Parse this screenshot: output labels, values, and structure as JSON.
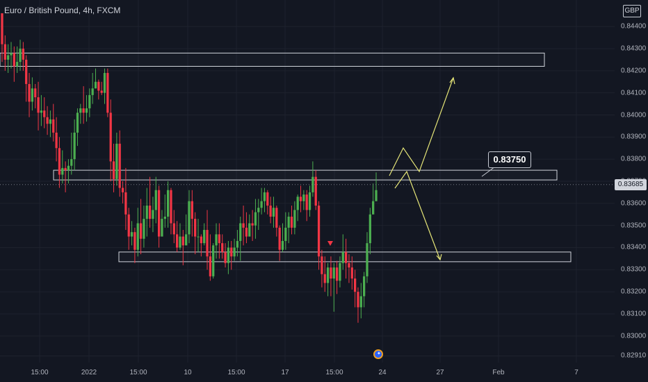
{
  "header": {
    "title": "Euro / British Pound, 4h, FXCM",
    "currency": "GBP"
  },
  "price_tag": "0.83685",
  "callout_label": "0.83750",
  "chart_data": {
    "type": "candlestick",
    "title": "Euro / British Pound, 4h, FXCM",
    "ylim": [
      0.8288,
      0.8452
    ],
    "y_ticks": [
      "0.84400",
      "0.84300",
      "0.84200",
      "0.84100",
      "0.84000",
      "0.83900",
      "0.83800",
      "0.83700",
      "0.83600",
      "0.83500",
      "0.83400",
      "0.83300",
      "0.83200",
      "0.83100",
      "0.83000",
      "0.82910"
    ],
    "x_ticks": [
      "15:00",
      "2022",
      "15:00",
      "10",
      "15:00",
      "17",
      "15:00",
      "24",
      "27",
      "Feb",
      "7"
    ],
    "current_price": 0.83685,
    "colors": {
      "up": "#4caf50",
      "down": "#f23645",
      "zone": "#d1d4dc",
      "projection": "#e6e678"
    },
    "zones": [
      {
        "top": 0.8428,
        "bottom": 0.8422
      },
      {
        "top": 0.8375,
        "bottom": 0.8372
      },
      {
        "top": 0.8338,
        "bottom": 0.83355
      }
    ],
    "candles": [
      [
        0.8446,
        0.8432,
        0.8442,
        0.8424
      ],
      [
        0.8432,
        0.8425,
        0.8436,
        0.842
      ],
      [
        0.8425,
        0.8427,
        0.8432,
        0.8419
      ],
      [
        0.8427,
        0.8428,
        0.8433,
        0.8421
      ],
      [
        0.8428,
        0.8422,
        0.8431,
        0.8415
      ],
      [
        0.8422,
        0.8424,
        0.8431,
        0.8419
      ],
      [
        0.8424,
        0.843,
        0.8434,
        0.842
      ],
      [
        0.843,
        0.8425,
        0.8433,
        0.842
      ],
      [
        0.8425,
        0.8414,
        0.8427,
        0.8406
      ],
      [
        0.8414,
        0.8406,
        0.8419,
        0.8399
      ],
      [
        0.8406,
        0.8412,
        0.8417,
        0.8402
      ],
      [
        0.8412,
        0.8408,
        0.8414,
        0.8403
      ],
      [
        0.8408,
        0.8401,
        0.8415,
        0.8393
      ],
      [
        0.8401,
        0.8402,
        0.8409,
        0.8395
      ],
      [
        0.8402,
        0.8399,
        0.8408,
        0.8394
      ],
      [
        0.8399,
        0.8396,
        0.8404,
        0.8391
      ],
      [
        0.8396,
        0.8398,
        0.8402,
        0.839
      ],
      [
        0.8398,
        0.8392,
        0.8405,
        0.8388
      ],
      [
        0.8392,
        0.8385,
        0.8399,
        0.8379
      ],
      [
        0.8385,
        0.8373,
        0.839,
        0.8367
      ],
      [
        0.8373,
        0.8376,
        0.8384,
        0.8369
      ],
      [
        0.8376,
        0.8375,
        0.8379,
        0.8365
      ],
      [
        0.8375,
        0.8377,
        0.838,
        0.8369
      ],
      [
        0.8377,
        0.838,
        0.8392,
        0.8373
      ],
      [
        0.838,
        0.8392,
        0.8398,
        0.8375
      ],
      [
        0.8392,
        0.8401,
        0.8403,
        0.8386
      ],
      [
        0.8401,
        0.8403,
        0.8405,
        0.8396
      ],
      [
        0.8403,
        0.8401,
        0.8413,
        0.8396
      ],
      [
        0.8401,
        0.8403,
        0.8409,
        0.8397
      ],
      [
        0.8403,
        0.8409,
        0.8412,
        0.8399
      ],
      [
        0.8409,
        0.8412,
        0.8419,
        0.8405
      ],
      [
        0.8412,
        0.8415,
        0.8421,
        0.8412
      ],
      [
        0.8415,
        0.8411,
        0.8416,
        0.8407
      ],
      [
        0.8411,
        0.841,
        0.8415,
        0.8409
      ],
      [
        0.841,
        0.8419,
        0.8421,
        0.8405
      ],
      [
        0.8419,
        0.8401,
        0.8421,
        0.8399
      ],
      [
        0.8401,
        0.8379,
        0.8407,
        0.837
      ],
      [
        0.8379,
        0.8371,
        0.8387,
        0.8365
      ],
      [
        0.8371,
        0.8387,
        0.8392,
        0.8368
      ],
      [
        0.8387,
        0.8367,
        0.8393,
        0.8363
      ],
      [
        0.8367,
        0.8365,
        0.837,
        0.836
      ],
      [
        0.8365,
        0.8355,
        0.8376,
        0.8348
      ],
      [
        0.8355,
        0.8345,
        0.8358,
        0.8339
      ],
      [
        0.8345,
        0.8347,
        0.8352,
        0.8341
      ],
      [
        0.8347,
        0.8339,
        0.8349,
        0.8333
      ],
      [
        0.8339,
        0.8351,
        0.8358,
        0.8336
      ],
      [
        0.8351,
        0.8344,
        0.8362,
        0.8337
      ],
      [
        0.8344,
        0.8353,
        0.8359,
        0.834
      ],
      [
        0.8353,
        0.8359,
        0.8367,
        0.8345
      ],
      [
        0.8359,
        0.8353,
        0.8372,
        0.8349
      ],
      [
        0.8353,
        0.8357,
        0.8363,
        0.8347
      ],
      [
        0.8357,
        0.8366,
        0.8372,
        0.8351
      ],
      [
        0.8366,
        0.8345,
        0.8368,
        0.834
      ],
      [
        0.8345,
        0.8353,
        0.8357,
        0.8345
      ],
      [
        0.8353,
        0.8354,
        0.8364,
        0.8349
      ],
      [
        0.8354,
        0.8366,
        0.837,
        0.8349
      ],
      [
        0.8366,
        0.8351,
        0.8367,
        0.8346
      ],
      [
        0.8351,
        0.8346,
        0.8357,
        0.8342
      ],
      [
        0.8346,
        0.834,
        0.8352,
        0.8338
      ],
      [
        0.834,
        0.8345,
        0.8351,
        0.8339
      ],
      [
        0.8345,
        0.8341,
        0.8348,
        0.8332
      ],
      [
        0.8341,
        0.8346,
        0.8355,
        0.8341
      ],
      [
        0.8346,
        0.8361,
        0.8366,
        0.8342
      ],
      [
        0.8361,
        0.8353,
        0.8366,
        0.8345
      ],
      [
        0.8353,
        0.8345,
        0.8356,
        0.8337
      ],
      [
        0.8345,
        0.8345,
        0.8353,
        0.8338
      ],
      [
        0.8345,
        0.8342,
        0.8346,
        0.8336
      ],
      [
        0.8342,
        0.8348,
        0.8351,
        0.8341
      ],
      [
        0.8348,
        0.8336,
        0.8357,
        0.833
      ],
      [
        0.8336,
        0.8327,
        0.8346,
        0.8325
      ],
      [
        0.8327,
        0.8341,
        0.8342,
        0.8326
      ],
      [
        0.8341,
        0.8346,
        0.8351,
        0.8335
      ],
      [
        0.8346,
        0.8342,
        0.8351,
        0.8335
      ],
      [
        0.8342,
        0.8338,
        0.8346,
        0.8335
      ],
      [
        0.8338,
        0.8333,
        0.8342,
        0.8331
      ],
      [
        0.8333,
        0.834,
        0.8343,
        0.8328
      ],
      [
        0.834,
        0.8336,
        0.8343,
        0.833
      ],
      [
        0.8336,
        0.834,
        0.8344,
        0.8334
      ],
      [
        0.834,
        0.8343,
        0.8348,
        0.8336
      ],
      [
        0.8343,
        0.8351,
        0.8354,
        0.8334
      ],
      [
        0.8351,
        0.8349,
        0.8359,
        0.8341
      ],
      [
        0.8349,
        0.8345,
        0.8356,
        0.8342
      ],
      [
        0.8345,
        0.8351,
        0.8355,
        0.8345
      ],
      [
        0.8351,
        0.835,
        0.8357,
        0.8343
      ],
      [
        0.835,
        0.8356,
        0.8362,
        0.8344
      ],
      [
        0.8356,
        0.8358,
        0.8362,
        0.8348
      ],
      [
        0.8358,
        0.8361,
        0.8367,
        0.8355
      ],
      [
        0.8361,
        0.8365,
        0.8367,
        0.8356
      ],
      [
        0.8365,
        0.8359,
        0.8366,
        0.8355
      ],
      [
        0.8359,
        0.8354,
        0.8363,
        0.8351
      ],
      [
        0.8354,
        0.8358,
        0.8363,
        0.8349
      ],
      [
        0.8358,
        0.8349,
        0.8359,
        0.8345
      ],
      [
        0.8349,
        0.8339,
        0.835,
        0.8334
      ],
      [
        0.8339,
        0.8343,
        0.8351,
        0.8338
      ],
      [
        0.8343,
        0.8349,
        0.8356,
        0.8339
      ],
      [
        0.8349,
        0.8354,
        0.8356,
        0.8342
      ],
      [
        0.8354,
        0.8349,
        0.8359,
        0.8346
      ],
      [
        0.8349,
        0.8357,
        0.8361,
        0.8346
      ],
      [
        0.8357,
        0.8363,
        0.8364,
        0.8352
      ],
      [
        0.8363,
        0.8361,
        0.8368,
        0.8356
      ],
      [
        0.8361,
        0.8364,
        0.8366,
        0.8357
      ],
      [
        0.8364,
        0.8357,
        0.8366,
        0.8352
      ],
      [
        0.8357,
        0.8365,
        0.8368,
        0.8354
      ],
      [
        0.8365,
        0.8372,
        0.8379,
        0.8363
      ],
      [
        0.8372,
        0.8359,
        0.8375,
        0.8357
      ],
      [
        0.8359,
        0.8336,
        0.8361,
        0.833
      ],
      [
        0.8336,
        0.8328,
        0.8339,
        0.8322
      ],
      [
        0.8328,
        0.8324,
        0.8336,
        0.832
      ],
      [
        0.8324,
        0.8331,
        0.8333,
        0.8318
      ],
      [
        0.8331,
        0.8326,
        0.8336,
        0.8318
      ],
      [
        0.8326,
        0.8331,
        0.8333,
        0.8311
      ],
      [
        0.8331,
        0.8325,
        0.8334,
        0.8319
      ],
      [
        0.8325,
        0.8333,
        0.8336,
        0.8322
      ],
      [
        0.8333,
        0.8338,
        0.8346,
        0.833
      ],
      [
        0.8338,
        0.8333,
        0.8344,
        0.8326
      ],
      [
        0.8333,
        0.8331,
        0.8337,
        0.8324
      ],
      [
        0.8331,
        0.8326,
        0.8336,
        0.8321
      ],
      [
        0.8326,
        0.832,
        0.833,
        0.8313
      ],
      [
        0.832,
        0.8313,
        0.8322,
        0.8306
      ],
      [
        0.8313,
        0.8318,
        0.8324,
        0.8308
      ],
      [
        0.8318,
        0.8327,
        0.8329,
        0.8313
      ],
      [
        0.8327,
        0.8342,
        0.8347,
        0.8324
      ],
      [
        0.8342,
        0.8355,
        0.8358,
        0.8337
      ],
      [
        0.8355,
        0.8361,
        0.8369,
        0.8356
      ],
      [
        0.8361,
        0.8366,
        0.8374,
        0.8361
      ]
    ]
  }
}
